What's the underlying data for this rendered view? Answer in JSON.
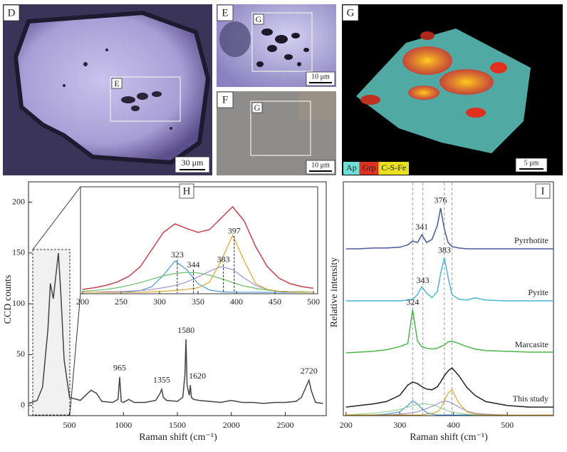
{
  "panels": {
    "D": {
      "label": "D",
      "box_label": "E",
      "scale_bar": "30 μm"
    },
    "E": {
      "label": "E",
      "box_label": "G",
      "scale_bar": "10 μm"
    },
    "F": {
      "label": "F",
      "box_label": "G",
      "scale_bar": "10 μm"
    },
    "G": {
      "label": "G",
      "scale_bar": "5 μm",
      "legend": [
        {
          "name": "Ap",
          "color": "#6ee0d8"
        },
        {
          "name": "Grp",
          "color": "#e03020"
        },
        {
          "name": "C-S-Fe",
          "color": "#e8e020"
        }
      ]
    }
  },
  "chart_data": [
    {
      "type": "line",
      "label": "H",
      "x_label": "Raman shift (cm⁻¹)",
      "y_label": "CCD counts",
      "x": [
        120,
        150,
        200,
        250,
        300,
        323,
        350,
        376,
        397,
        420,
        450,
        500,
        600,
        700,
        750,
        800,
        900,
        950,
        965,
        980,
        1000,
        1050,
        1100,
        1200,
        1300,
        1340,
        1355,
        1370,
        1400,
        1500,
        1550,
        1570,
        1580,
        1590,
        1610,
        1620,
        1630,
        1650,
        1700,
        1800,
        1900,
        2000,
        2100,
        2200,
        2300,
        2400,
        2500,
        2600,
        2650,
        2700,
        2720,
        2740,
        2780,
        2850
      ],
      "series": [
        {
          "color": "#444444",
          "values": [
            2,
            3,
            5,
            18,
            75,
            120,
            105,
            130,
            150,
            110,
            45,
            8,
            5,
            15,
            12,
            4,
            3,
            6,
            28,
            4,
            3,
            6,
            3,
            3,
            5,
            12,
            16,
            8,
            5,
            4,
            8,
            30,
            65,
            20,
            10,
            20,
            8,
            6,
            5,
            4,
            3,
            5,
            3,
            3,
            2,
            3,
            3,
            4,
            8,
            20,
            25,
            15,
            3,
            2
          ]
        }
      ],
      "xlim": [
        120,
        2880
      ],
      "ylim": [
        -10,
        220
      ],
      "xticks": [
        500,
        1000,
        1500,
        2000,
        2500
      ],
      "yticks": [
        0,
        50,
        100,
        150,
        200
      ],
      "peak_labels": [
        965,
        1355,
        1580,
        1620,
        2720
      ]
    },
    {
      "type": "line",
      "x": [
        200,
        215,
        230,
        245,
        260,
        275,
        290,
        305,
        320,
        335,
        350,
        365,
        380,
        395,
        410,
        425,
        440,
        455,
        470,
        485,
        500
      ],
      "series": [
        {
          "color": "#c8404a",
          "values": [
            5,
            8,
            12,
            18,
            28,
            45,
            75,
            105,
            120,
            112,
            105,
            110,
            130,
            150,
            125,
            80,
            45,
            25,
            15,
            10,
            7
          ]
        },
        {
          "color": "#3a8fd8",
          "values": [
            0,
            0,
            0,
            0,
            1,
            3,
            10,
            30,
            55,
            40,
            15,
            4,
            1,
            0,
            0,
            0,
            0,
            0,
            0,
            0,
            0
          ]
        },
        {
          "color": "#5ab85a",
          "values": [
            2,
            3,
            5,
            8,
            12,
            17,
            23,
            29,
            33,
            35,
            34,
            30,
            24,
            17,
            11,
            7,
            4,
            2,
            1,
            1,
            0
          ]
        },
        {
          "color": "#9a8acb",
          "values": [
            0,
            0,
            1,
            1,
            2,
            3,
            5,
            8,
            12,
            18,
            27,
            37,
            45,
            40,
            25,
            12,
            5,
            2,
            1,
            0,
            0
          ]
        },
        {
          "color": "#d4a020",
          "values": [
            0,
            0,
            0,
            0,
            0,
            0,
            1,
            2,
            3,
            5,
            8,
            18,
            55,
            100,
            55,
            15,
            5,
            2,
            1,
            0,
            0
          ]
        }
      ],
      "xlim": [
        200,
        500
      ],
      "xticks": [
        200,
        250,
        300,
        350,
        400,
        450,
        500
      ],
      "peak_labels": [
        323,
        344,
        383,
        397
      ]
    },
    {
      "type": "line",
      "label": "I",
      "x_label": "Raman shift (cm⁻¹)",
      "y_label": "Relative intensity",
      "x": [
        200,
        225,
        250,
        275,
        300,
        315,
        324,
        333,
        341,
        350,
        360,
        370,
        376,
        383,
        390,
        397,
        410,
        425,
        440,
        460,
        500,
        540,
        586
      ],
      "series": [
        {
          "name": "Pyrrhotite",
          "color": "#4a5a9a",
          "values": [
            10,
            10,
            11,
            11,
            12,
            15,
            20,
            18,
            28,
            18,
            22,
            40,
            62,
            35,
            18,
            13,
            11,
            10,
            10,
            10,
            10,
            10,
            10
          ],
          "peak_labels": [
            341,
            376
          ]
        },
        {
          "name": "Pyrite",
          "color": "#4bb5d8",
          "values": [
            10,
            10,
            10,
            10,
            10,
            11,
            12,
            18,
            28,
            20,
            14,
            22,
            45,
            65,
            40,
            18,
            12,
            11,
            14,
            11,
            10,
            10,
            10
          ],
          "peak_labels": [
            343,
            383
          ]
        },
        {
          "name": "Marcasite",
          "color": "#4bb54b",
          "values": [
            10,
            11,
            12,
            14,
            18,
            22,
            65,
            25,
            18,
            16,
            15,
            16,
            18,
            20,
            24,
            25,
            22,
            18,
            15,
            13,
            12,
            11,
            11
          ],
          "peak_labels": [
            324
          ]
        },
        {
          "name": "This study",
          "color": "#222222",
          "values": [
            10,
            12,
            14,
            17,
            25,
            38,
            42,
            40,
            36,
            33,
            32,
            36,
            42,
            50,
            56,
            60,
            50,
            35,
            25,
            17,
            12,
            10,
            10
          ]
        },
        {
          "color": "#3a8fd8",
          "values": [
            0,
            0,
            0,
            1,
            4,
            12,
            18,
            14,
            8,
            3,
            1,
            0,
            0,
            0,
            0,
            0,
            0,
            0,
            0,
            0,
            0,
            0,
            0
          ]
        },
        {
          "color": "#8fcf8f",
          "values": [
            0,
            1,
            2,
            4,
            7,
            10,
            12,
            13,
            14,
            14,
            13,
            11,
            9,
            7,
            5,
            4,
            2,
            1,
            0,
            0,
            0,
            0,
            0
          ]
        },
        {
          "color": "#9a8acb",
          "values": [
            0,
            0,
            0,
            0,
            1,
            2,
            3,
            4,
            6,
            8,
            11,
            14,
            16,
            18,
            17,
            15,
            10,
            5,
            2,
            1,
            0,
            0,
            0
          ]
        },
        {
          "color": "#d4a020",
          "values": [
            0,
            0,
            0,
            0,
            0,
            0,
            0,
            0,
            0,
            1,
            2,
            4,
            8,
            18,
            28,
            32,
            15,
            4,
            1,
            0,
            0,
            0,
            0
          ]
        }
      ],
      "xlim": [
        195,
        586
      ],
      "xticks": [
        200,
        300,
        400,
        500
      ],
      "vlines": [
        324,
        343,
        383,
        397
      ]
    }
  ]
}
